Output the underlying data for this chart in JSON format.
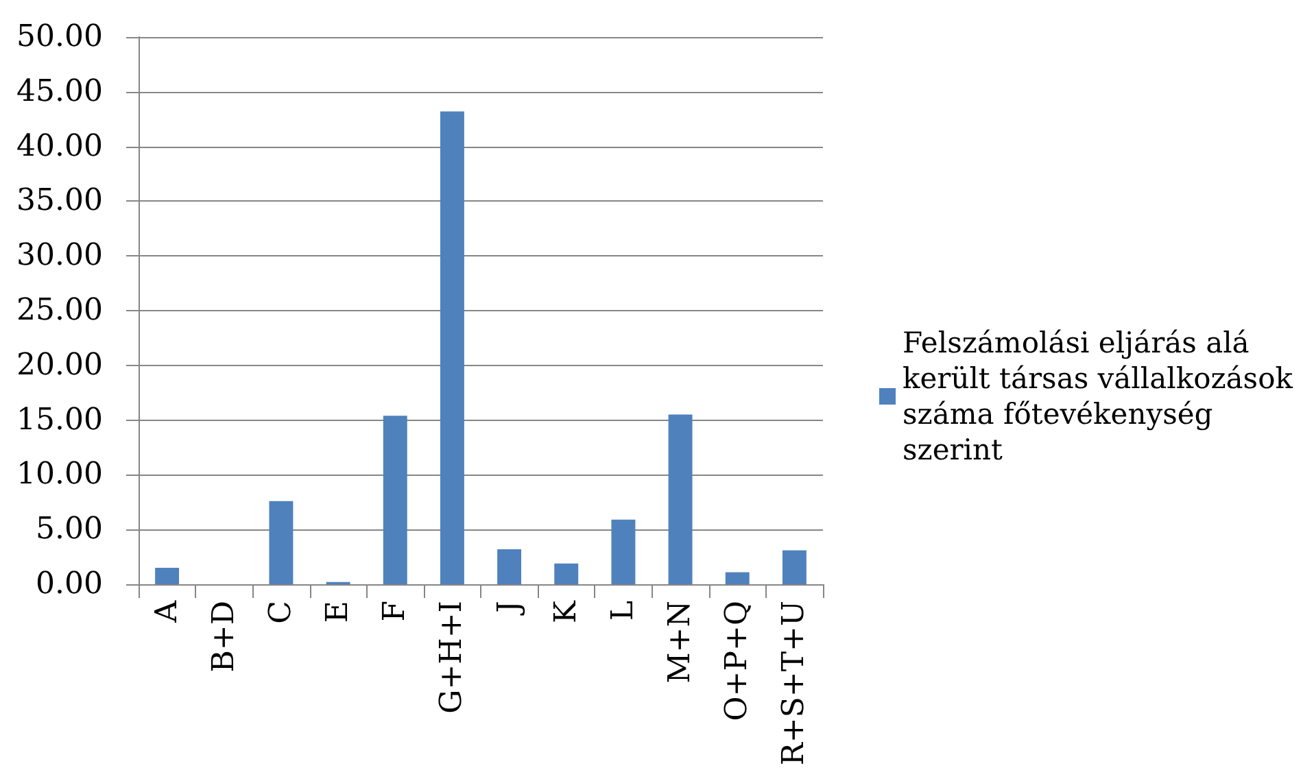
{
  "chart_data": {
    "type": "bar",
    "categories": [
      "A",
      "B+D",
      "C",
      "E",
      "F",
      "G+H+I",
      "J",
      "K",
      "L",
      "M+N",
      "O+P+Q",
      "R+S+T+U"
    ],
    "series": [
      {
        "name": "Felszámolási eljárás alá került társas vállalkozások száma főtevékenység szerint",
        "color": "#4f81bd",
        "values": [
          1.5,
          0,
          7.6,
          0.2,
          15.4,
          43.2,
          3.2,
          1.9,
          5.9,
          15.5,
          1.1,
          3.1
        ]
      }
    ],
    "ylim": [
      0,
      50
    ],
    "yticks": [
      {
        "value": 0,
        "label": "0.00"
      },
      {
        "value": 5,
        "label": "5.00"
      },
      {
        "value": 10,
        "label": "10.00"
      },
      {
        "value": 15,
        "label": "15.00"
      },
      {
        "value": 20,
        "label": "20.00"
      },
      {
        "value": 25,
        "label": "25.00"
      },
      {
        "value": 30,
        "label": "30.00"
      },
      {
        "value": 35,
        "label": "35.00"
      },
      {
        "value": 40,
        "label": "40.00"
      },
      {
        "value": 45,
        "label": "45.00"
      },
      {
        "value": 50,
        "label": "50.00"
      }
    ],
    "grid": "y",
    "legend": "right"
  }
}
